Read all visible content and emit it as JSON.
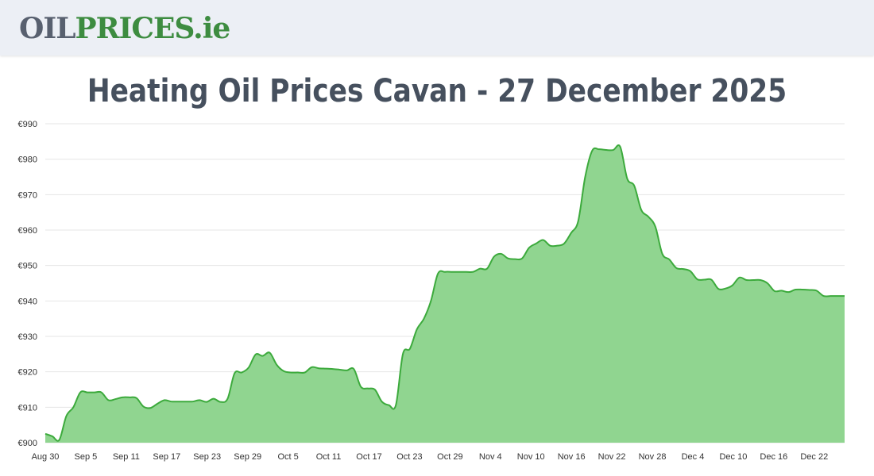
{
  "header": {
    "logo_oil": "OIL",
    "logo_prices": "PRICES",
    "logo_tld": ".ie"
  },
  "page_title": "Heating Oil Prices Cavan - 27 December 2025",
  "chart_data": {
    "type": "area",
    "title": "Heating Oil Prices Cavan - 27 December 2025",
    "xlabel": "",
    "ylabel": "",
    "ylim": [
      900,
      990
    ],
    "y_ticks": [
      900,
      910,
      920,
      930,
      940,
      950,
      960,
      970,
      980,
      990
    ],
    "y_tick_labels": [
      "€900",
      "€910",
      "€920",
      "€930",
      "€940",
      "€950",
      "€960",
      "€970",
      "€980",
      "€990"
    ],
    "x_tick_labels": [
      "Aug 30",
      "Sep 5",
      "Sep 11",
      "Sep 17",
      "Sep 23",
      "Sep 29",
      "Oct 5",
      "Oct 11",
      "Oct 17",
      "Oct 23",
      "Oct 29",
      "Nov 4",
      "Nov 10",
      "Nov 16",
      "Nov 22",
      "Nov 28",
      "Dec 4",
      "Dec 10",
      "Dec 16",
      "Dec 22"
    ],
    "grid": true,
    "legend": "none",
    "colors": {
      "line": "#3caa3c",
      "fill": "#90d590",
      "grid": "#e6e6e6"
    },
    "series": [
      {
        "values": [
          902.5,
          901.8,
          900.8,
          907.5,
          910.0,
          914.2,
          914.2,
          914.2,
          914.2,
          912.0,
          912.3,
          912.8,
          912.8,
          912.6,
          910.2,
          909.8,
          911.0,
          912.0,
          911.6,
          911.6,
          911.6,
          911.6,
          912.0,
          911.5,
          912.4,
          911.5,
          912.4,
          919.6,
          919.8,
          921.2,
          924.9,
          924.5,
          925.4,
          922.0,
          920.2,
          919.8,
          919.8,
          919.8,
          921.3,
          921.0,
          920.9,
          920.8,
          920.6,
          920.4,
          920.8,
          915.8,
          915.3,
          915.0,
          911.6,
          910.6,
          910.6,
          925.0,
          926.5,
          932.0,
          935.0,
          940.0,
          947.7,
          948.2,
          948.2,
          948.2,
          948.2,
          948.2,
          949.1,
          949.1,
          952.5,
          953.3,
          952.0,
          951.8,
          952.0,
          955.0,
          956.2,
          957.2,
          955.6,
          955.6,
          956.2,
          959.2,
          962.5,
          975.0,
          982.4,
          982.8,
          982.6,
          982.6,
          983.5,
          974.5,
          972.5,
          965.7,
          963.8,
          961.0,
          953.3,
          951.7,
          949.3,
          949.0,
          948.4,
          946.1,
          946.0,
          946.0,
          943.4,
          943.5,
          944.4,
          946.6,
          945.9,
          945.9,
          945.9,
          945.0,
          942.8,
          942.9,
          942.5,
          943.2,
          943.2,
          943.1,
          942.9,
          941.4,
          941.4,
          941.4,
          941.4
        ]
      }
    ]
  }
}
